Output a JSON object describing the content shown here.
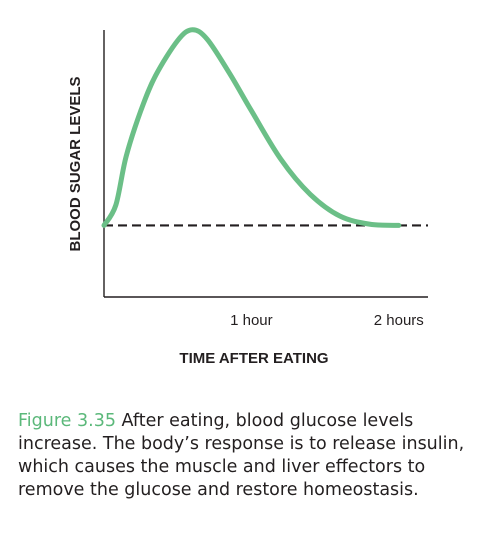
{
  "chart_data": {
    "type": "line",
    "ylabel": "BLOOD SUGAR LEVELS",
    "xlabel": "TIME AFTER EATING",
    "x_ticks": [
      {
        "value": 1,
        "label": "1 hour"
      },
      {
        "value": 2,
        "label": "2 hours"
      }
    ],
    "xlim": [
      0,
      2.3
    ],
    "ylim": [
      0,
      1.0
    ],
    "baseline": 0.265,
    "series": [
      {
        "points": [
          [
            0.0,
            0.265
          ],
          [
            0.08,
            0.34
          ],
          [
            0.15,
            0.52
          ],
          [
            0.25,
            0.69
          ],
          [
            0.35,
            0.82
          ],
          [
            0.5,
            0.95
          ],
          [
            0.6,
            0.99
          ],
          [
            0.7,
            0.955
          ],
          [
            0.85,
            0.83
          ],
          [
            1.0,
            0.69
          ],
          [
            1.2,
            0.51
          ],
          [
            1.4,
            0.38
          ],
          [
            1.6,
            0.3
          ],
          [
            1.8,
            0.27
          ],
          [
            2.0,
            0.265
          ]
        ]
      }
    ],
    "line_color": "#6bbf87",
    "baseline_color": "#231f20",
    "axis_color": "#231f20",
    "grid": false
  },
  "caption": {
    "label": "Figure 3.35",
    "text": "After eating, blood glucose levels increase. The body’s response is to release insulin, which causes the muscle and liver effectors to remove the glucose and restore homeostasis."
  },
  "colors": {
    "caption_label": "#5bb87a"
  }
}
